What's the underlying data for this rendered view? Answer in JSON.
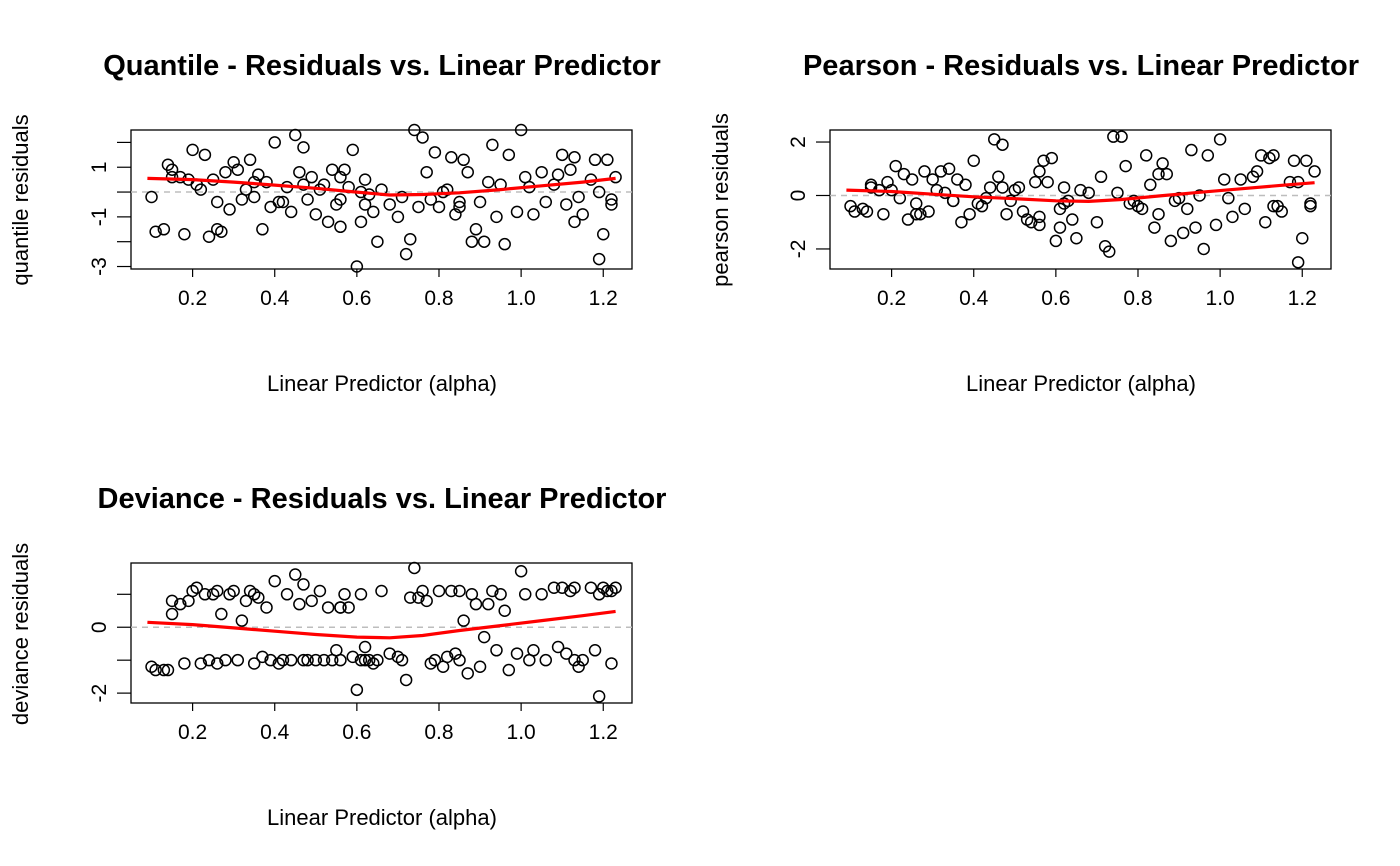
{
  "chart_data": [
    {
      "type": "scatter",
      "title": "Quantile - Residuals vs. Linear Predictor",
      "xlabel": "Linear Predictor (alpha)",
      "ylabel": "quantile residuals",
      "xlim": [
        0.05,
        1.27
      ],
      "ylim": [
        -3.1,
        2.5
      ],
      "xticks": [
        "0.2",
        "0.4",
        "0.6",
        "0.8",
        "1.0",
        "1.2"
      ],
      "yticks": [
        "-3",
        "-1",
        "1"
      ],
      "ytick_values": [
        -3,
        -1,
        1
      ],
      "y_minor_ticks": [
        -2,
        0,
        2
      ],
      "grid": false,
      "reference_line": 0,
      "smooth_color": "#ff0000",
      "smooth": {
        "x": [
          0.09,
          0.2,
          0.3,
          0.4,
          0.5,
          0.6,
          0.68,
          0.76,
          0.85,
          0.95,
          1.05,
          1.15,
          1.23
        ],
        "y": [
          0.55,
          0.5,
          0.4,
          0.28,
          0.15,
          0.0,
          -0.12,
          -0.1,
          -0.03,
          0.1,
          0.25,
          0.4,
          0.55
        ]
      },
      "points_x": [
        0.1,
        0.11,
        0.13,
        0.15,
        0.15,
        0.17,
        0.18,
        0.2,
        0.21,
        0.22,
        0.23,
        0.24,
        0.25,
        0.26,
        0.27,
        0.28,
        0.29,
        0.3,
        0.31,
        0.32,
        0.34,
        0.35,
        0.36,
        0.37,
        0.38,
        0.39,
        0.4,
        0.42,
        0.43,
        0.44,
        0.45,
        0.46,
        0.47,
        0.48,
        0.49,
        0.5,
        0.51,
        0.52,
        0.53,
        0.54,
        0.55,
        0.56,
        0.57,
        0.58,
        0.59,
        0.6,
        0.61,
        0.62,
        0.63,
        0.64,
        0.65,
        0.66,
        0.68,
        0.7,
        0.72,
        0.73,
        0.74,
        0.76,
        0.77,
        0.79,
        0.8,
        0.82,
        0.83,
        0.84,
        0.85,
        0.86,
        0.87,
        0.88,
        0.9,
        0.91,
        0.93,
        0.94,
        0.96,
        0.97,
        0.99,
        1.0,
        1.01,
        1.03,
        1.05,
        1.06,
        1.08,
        1.1,
        1.11,
        1.12,
        1.13,
        1.15,
        1.17,
        1.18,
        1.19,
        1.2,
        1.21,
        1.22,
        1.23,
        0.14,
        0.19,
        0.26,
        0.33,
        0.41,
        0.47,
        0.56,
        0.61,
        0.71,
        0.75,
        0.81,
        0.85,
        0.89,
        0.95,
        1.02,
        1.09,
        1.14,
        1.19,
        1.22,
        0.35,
        0.56,
        0.62,
        0.78,
        0.92,
        1.13
      ],
      "points_y": [
        -0.2,
        -1.6,
        -1.5,
        0.9,
        0.6,
        0.6,
        -1.7,
        1.7,
        0.3,
        0.1,
        1.5,
        -1.8,
        0.5,
        -0.4,
        -1.6,
        0.8,
        -0.7,
        1.2,
        0.9,
        -0.3,
        1.3,
        -0.2,
        0.7,
        -1.5,
        0.4,
        -0.6,
        2.0,
        -0.4,
        0.2,
        -0.8,
        2.3,
        0.8,
        1.8,
        -0.3,
        0.6,
        -0.9,
        0.1,
        0.3,
        -1.2,
        0.9,
        -0.5,
        -1.4,
        0.9,
        0.2,
        1.7,
        -3.0,
        -1.2,
        -0.5,
        -0.1,
        -0.8,
        -2.0,
        0.1,
        -0.5,
        -1.0,
        -2.5,
        -1.9,
        2.5,
        2.2,
        0.8,
        1.6,
        -0.6,
        0.1,
        1.4,
        -0.9,
        -0.6,
        1.3,
        0.8,
        -2.0,
        -0.4,
        -2.0,
        1.9,
        -1.0,
        -2.1,
        1.5,
        -0.8,
        2.5,
        0.6,
        -0.9,
        0.8,
        -0.4,
        0.3,
        1.5,
        -0.5,
        0.9,
        1.4,
        -0.9,
        0.5,
        1.3,
        -2.7,
        -1.7,
        1.3,
        -0.3,
        0.6,
        1.1,
        0.5,
        -1.5,
        0.1,
        -0.4,
        0.3,
        -0.3,
        0.0,
        -0.2,
        -0.6,
        0.0,
        -0.4,
        -1.5,
        0.3,
        0.2,
        0.7,
        -0.2,
        0.0,
        -0.5,
        0.4,
        0.6,
        0.5,
        -0.3,
        0.4,
        -1.2
      ],
      "point_color": "#000000"
    },
    {
      "type": "scatter",
      "title": "Pearson - Residuals vs. Linear Predictor",
      "xlabel": "Linear Predictor (alpha)",
      "ylabel": "pearson residuals",
      "xlim": [
        0.05,
        1.27
      ],
      "ylim": [
        -2.75,
        2.45
      ],
      "xticks": [
        "0.2",
        "0.4",
        "0.6",
        "0.8",
        "1.0",
        "1.2"
      ],
      "yticks": [
        "-2",
        "0",
        "2"
      ],
      "ytick_values": [
        -2,
        0,
        2
      ],
      "grid": false,
      "reference_line": 0,
      "smooth_color": "#ff0000",
      "smooth": {
        "x": [
          0.09,
          0.2,
          0.3,
          0.4,
          0.5,
          0.6,
          0.68,
          0.76,
          0.85,
          0.95,
          1.05,
          1.15,
          1.23
        ],
        "y": [
          0.2,
          0.15,
          0.05,
          -0.05,
          -0.12,
          -0.2,
          -0.22,
          -0.15,
          -0.02,
          0.12,
          0.25,
          0.38,
          0.48
        ]
      },
      "points_x": [
        0.1,
        0.11,
        0.13,
        0.15,
        0.15,
        0.17,
        0.18,
        0.2,
        0.21,
        0.22,
        0.23,
        0.24,
        0.25,
        0.26,
        0.27,
        0.28,
        0.29,
        0.3,
        0.31,
        0.32,
        0.34,
        0.35,
        0.36,
        0.37,
        0.38,
        0.39,
        0.4,
        0.42,
        0.43,
        0.44,
        0.45,
        0.46,
        0.47,
        0.48,
        0.49,
        0.5,
        0.51,
        0.52,
        0.53,
        0.54,
        0.55,
        0.56,
        0.57,
        0.58,
        0.59,
        0.6,
        0.61,
        0.62,
        0.63,
        0.64,
        0.65,
        0.66,
        0.68,
        0.7,
        0.72,
        0.73,
        0.74,
        0.76,
        0.77,
        0.79,
        0.8,
        0.82,
        0.83,
        0.84,
        0.85,
        0.86,
        0.87,
        0.88,
        0.9,
        0.91,
        0.93,
        0.94,
        0.96,
        0.97,
        0.99,
        1.0,
        1.01,
        1.03,
        1.05,
        1.06,
        1.08,
        1.1,
        1.11,
        1.12,
        1.13,
        1.15,
        1.17,
        1.18,
        1.19,
        1.2,
        1.21,
        1.22,
        1.23,
        0.14,
        0.19,
        0.26,
        0.33,
        0.41,
        0.47,
        0.56,
        0.61,
        0.71,
        0.75,
        0.81,
        0.85,
        0.89,
        0.95,
        1.02,
        1.09,
        1.14,
        1.19,
        1.22,
        0.35,
        0.56,
        0.62,
        0.78,
        0.92,
        1.13
      ],
      "points_y": [
        -0.4,
        -0.6,
        -0.5,
        0.3,
        0.4,
        0.2,
        -0.7,
        0.2,
        1.1,
        -0.1,
        0.8,
        -0.9,
        0.6,
        -0.3,
        -0.7,
        0.9,
        -0.6,
        0.6,
        0.2,
        0.9,
        1.0,
        -0.2,
        0.6,
        -1.0,
        0.4,
        -0.7,
        1.3,
        -0.4,
        -0.1,
        0.3,
        2.1,
        0.7,
        1.9,
        -0.7,
        -0.2,
        0.2,
        0.3,
        -0.6,
        -0.9,
        -1.0,
        0.5,
        -1.1,
        1.3,
        0.5,
        1.4,
        -1.7,
        -1.2,
        -0.3,
        -0.2,
        -0.9,
        -1.6,
        0.2,
        0.1,
        -1.0,
        -1.9,
        -2.1,
        2.2,
        2.2,
        1.1,
        -0.2,
        -0.4,
        1.5,
        0.4,
        -1.2,
        -0.7,
        1.2,
        0.8,
        -1.7,
        -0.1,
        -1.4,
        1.7,
        -1.2,
        -2.0,
        1.5,
        -1.1,
        2.1,
        0.6,
        -0.8,
        0.6,
        -0.5,
        0.7,
        1.5,
        -1.0,
        1.4,
        1.5,
        -0.6,
        0.5,
        1.3,
        -2.5,
        -1.6,
        1.3,
        -0.4,
        0.9,
        -0.6,
        0.5,
        -0.7,
        0.1,
        -0.3,
        0.3,
        -0.8,
        -0.5,
        0.7,
        0.1,
        -0.5,
        0.8,
        -0.2,
        0.0,
        -0.1,
        0.9,
        -0.4,
        0.5,
        -0.3,
        -0.2,
        0.9,
        0.3,
        -0.3,
        -0.5,
        -0.4,
        0.3,
        -0.2
      ],
      "point_color": "#000000"
    },
    {
      "type": "scatter",
      "title": "Deviance - Residuals vs. Linear Predictor",
      "xlabel": "Linear Predictor (alpha)",
      "ylabel": "deviance residuals",
      "xlim": [
        0.05,
        1.27
      ],
      "ylim": [
        -2.3,
        1.95
      ],
      "xticks": [
        "0.2",
        "0.4",
        "0.6",
        "0.8",
        "1.0",
        "1.2"
      ],
      "yticks": [
        "-2",
        "0"
      ],
      "ytick_values": [
        -2,
        0
      ],
      "y_minor_ticks": [
        -1,
        1
      ],
      "grid": false,
      "reference_line": 0,
      "smooth_color": "#ff0000",
      "smooth": {
        "x": [
          0.09,
          0.2,
          0.3,
          0.4,
          0.5,
          0.6,
          0.68,
          0.76,
          0.85,
          0.95,
          1.05,
          1.15,
          1.23
        ],
        "y": [
          0.15,
          0.08,
          -0.02,
          -0.12,
          -0.22,
          -0.3,
          -0.32,
          -0.25,
          -0.1,
          0.05,
          0.2,
          0.35,
          0.48
        ]
      },
      "points_x": [
        0.1,
        0.11,
        0.13,
        0.15,
        0.15,
        0.17,
        0.18,
        0.2,
        0.21,
        0.22,
        0.23,
        0.24,
        0.25,
        0.26,
        0.27,
        0.28,
        0.29,
        0.3,
        0.31,
        0.32,
        0.34,
        0.35,
        0.36,
        0.37,
        0.38,
        0.39,
        0.4,
        0.42,
        0.43,
        0.44,
        0.45,
        0.46,
        0.47,
        0.48,
        0.49,
        0.5,
        0.51,
        0.52,
        0.53,
        0.54,
        0.55,
        0.56,
        0.57,
        0.58,
        0.59,
        0.6,
        0.61,
        0.62,
        0.63,
        0.64,
        0.65,
        0.66,
        0.68,
        0.7,
        0.72,
        0.73,
        0.74,
        0.76,
        0.77,
        0.79,
        0.8,
        0.82,
        0.83,
        0.84,
        0.85,
        0.86,
        0.87,
        0.88,
        0.9,
        0.91,
        0.93,
        0.94,
        0.96,
        0.97,
        0.99,
        1.0,
        1.01,
        1.03,
        1.05,
        1.06,
        1.08,
        1.1,
        1.11,
        1.12,
        1.13,
        1.15,
        1.17,
        1.18,
        1.19,
        1.2,
        1.21,
        1.22,
        1.23,
        0.14,
        0.19,
        0.26,
        0.33,
        0.41,
        0.47,
        0.56,
        0.61,
        0.71,
        0.75,
        0.81,
        0.85,
        0.89,
        0.95,
        1.02,
        1.09,
        1.14,
        1.19,
        1.22,
        0.35,
        0.56,
        0.62,
        0.78,
        0.92,
        1.13
      ],
      "points_y": [
        -1.2,
        -1.3,
        -1.3,
        0.8,
        0.4,
        0.7,
        -1.1,
        1.1,
        1.2,
        -1.1,
        1.0,
        -1.0,
        1.0,
        -1.1,
        0.4,
        -1.0,
        1.0,
        1.1,
        -1.0,
        0.2,
        1.1,
        -1.1,
        0.9,
        -0.9,
        0.6,
        -1.0,
        1.4,
        -1.0,
        1.0,
        -1.0,
        1.6,
        0.7,
        1.3,
        -1.0,
        0.8,
        -1.0,
        1.1,
        -1.0,
        0.6,
        -1.0,
        -0.7,
        -1.0,
        1.0,
        0.6,
        -0.9,
        -1.9,
        1.0,
        -0.6,
        -1.0,
        -1.1,
        -1.0,
        1.1,
        -0.8,
        -0.9,
        -1.6,
        0.9,
        1.8,
        1.1,
        0.8,
        -1.0,
        1.1,
        -0.9,
        1.1,
        -0.8,
        1.1,
        0.2,
        -1.4,
        1.0,
        -1.2,
        -0.3,
        1.1,
        -0.7,
        0.5,
        -1.3,
        -0.8,
        1.7,
        1.0,
        -0.7,
        1.0,
        -1.0,
        1.2,
        1.2,
        -0.8,
        1.1,
        1.2,
        -1.0,
        1.2,
        -0.7,
        -2.1,
        1.2,
        1.1,
        1.1,
        1.2,
        -1.3,
        0.8,
        1.1,
        0.8,
        -1.1,
        -1.0,
        0.6,
        -1.0,
        -1.0,
        0.9,
        -1.2,
        -1.0,
        0.7,
        1.0,
        -1.0,
        -0.6,
        -1.2,
        1.0,
        -1.1,
        1.0,
        0.6,
        -1.0,
        -1.1,
        0.7,
        -1.0,
        1.1
      ],
      "point_color": "#000000"
    }
  ]
}
